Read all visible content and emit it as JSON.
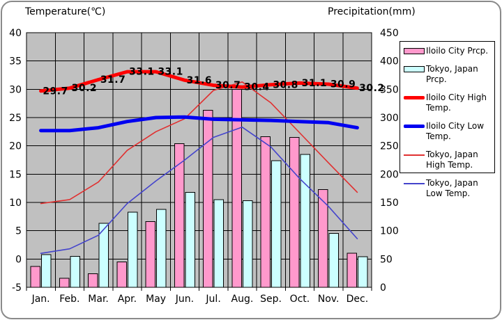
{
  "titles": {
    "temperature_axis": "Temperature(℃)",
    "precipitation_axis": "Precipitation(mm)"
  },
  "colors": {
    "plot_background": "#c0c0c0",
    "gridline": "#000000",
    "iloilo_prcp_bar": "#ff99cc",
    "tokyo_prcp_bar": "#ccffff",
    "iloilo_high_line": "#ff0000",
    "iloilo_low_line": "#0000f0",
    "tokyo_high_line": "#e03030",
    "tokyo_low_line": "#4444cc",
    "frame_border": "#8a8a8a",
    "text": "#000000"
  },
  "legend": {
    "position": "right",
    "items": [
      {
        "swatch": "bar-pink",
        "label": "Iloilo City Prcp."
      },
      {
        "swatch": "bar-cyan",
        "label": "Tokyo, Japan Prcp."
      },
      {
        "swatch": "thick-red",
        "label": "Iloilo City High Temp."
      },
      {
        "swatch": "thick-blue",
        "label": "Iloilo City Low Temp."
      },
      {
        "swatch": "thin-red",
        "label": "Tokyo, Japan High Temp."
      },
      {
        "swatch": "thin-blue",
        "label": "Tokyo, Japan Low Temp."
      }
    ]
  },
  "chart_data": {
    "type": "bar",
    "subtype": "bar-line combo climate chart",
    "categories": [
      "Jan.",
      "Feb.",
      "Mar.",
      "Apr.",
      "May",
      "Jun.",
      "Jul.",
      "Aug.",
      "Sep.",
      "Oct.",
      "Nov.",
      "Dec."
    ],
    "temperature_axis": {
      "label": "Temperature(℃)",
      "min": -5,
      "max": 40,
      "step": 5,
      "ticks": [
        40,
        35,
        30,
        25,
        20,
        15,
        10,
        5,
        0,
        -5
      ]
    },
    "precipitation_axis": {
      "label": "Precipitation(mm)",
      "min": 0,
      "max": 450,
      "step": 50,
      "ticks": [
        450,
        400,
        350,
        300,
        250,
        200,
        150,
        100,
        50,
        0
      ]
    },
    "grid": "on",
    "series": [
      {
        "name": "Iloilo City Prcp.",
        "type": "bar",
        "axis": "precipitation",
        "color": "#ff99cc",
        "values": [
          37,
          16,
          24,
          45,
          116,
          254,
          313,
          350,
          266,
          265,
          173,
          60
        ]
      },
      {
        "name": "Tokyo, Japan Prcp.",
        "type": "bar",
        "axis": "precipitation",
        "color": "#ccffff",
        "values": [
          58,
          55,
          113,
          133,
          138,
          168,
          155,
          153,
          224,
          235,
          95,
          54
        ]
      },
      {
        "name": "Tokyo, Japan High Temp.",
        "type": "line",
        "axis": "temperature",
        "color": "#e03030",
        "stroke_width": 1.6,
        "values": [
          9.8,
          10.5,
          13.6,
          19.2,
          22.5,
          24.8,
          29.8,
          31.3,
          27.6,
          22.3,
          17.0,
          11.8
        ]
      },
      {
        "name": "Tokyo, Japan Low Temp.",
        "type": "line",
        "axis": "temperature",
        "color": "#4444cc",
        "stroke_width": 1.6,
        "values": [
          1.0,
          1.8,
          4.2,
          9.8,
          13.8,
          17.5,
          21.5,
          23.3,
          19.8,
          14.2,
          9.3,
          3.6
        ]
      },
      {
        "name": "Iloilo City Low Temp.",
        "type": "line",
        "axis": "temperature",
        "color": "#0000f0",
        "stroke_width": 5,
        "values": [
          22.7,
          22.7,
          23.2,
          24.3,
          25.0,
          25.1,
          24.7,
          24.6,
          24.5,
          24.3,
          24.1,
          23.2
        ]
      },
      {
        "name": "Iloilo City High Temp.",
        "type": "line",
        "axis": "temperature",
        "color": "#ff0000",
        "stroke_width": 5,
        "values": [
          29.7,
          30.2,
          31.7,
          33.1,
          33.1,
          31.6,
          30.7,
          30.4,
          30.8,
          31.1,
          30.9,
          30.2
        ],
        "point_labels": [
          "29.7",
          "30.2",
          "31.7",
          "33.1",
          "33.1",
          "31.6",
          "30.7",
          "30.4",
          "30.8",
          "31.1",
          "30.9",
          "30.2"
        ]
      }
    ]
  }
}
